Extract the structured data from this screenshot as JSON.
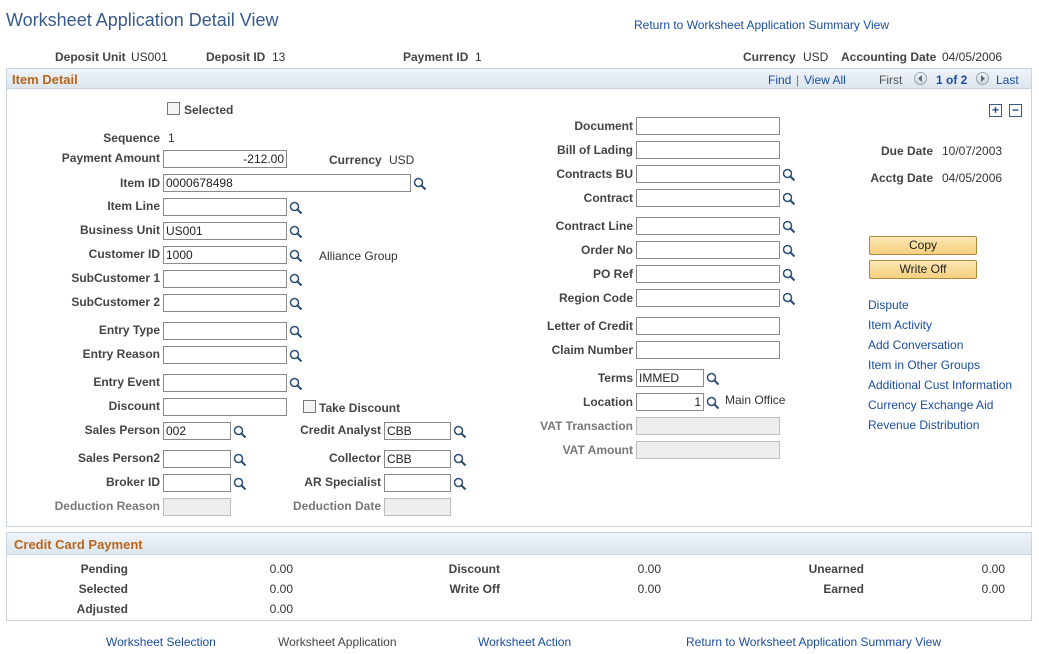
{
  "page": {
    "title": "Worksheet Application Detail View",
    "return_link": "Return to Worksheet Application Summary View"
  },
  "header": {
    "deposit_unit_label": "Deposit Unit",
    "deposit_unit": "US001",
    "deposit_id_label": "Deposit ID",
    "deposit_id": "13",
    "payment_id_label": "Payment ID",
    "payment_id": "1",
    "currency_label": "Currency",
    "currency": "USD",
    "accounting_date_label": "Accounting Date",
    "accounting_date": "04/05/2006"
  },
  "item_detail": {
    "section_title": "Item Detail",
    "find": "Find",
    "separator": "|",
    "view_all": "View All",
    "first": "First",
    "pager": "1 of 2",
    "last": "Last",
    "plus": "+",
    "minus": "−",
    "selected_label": "Selected",
    "sequence_label": "Sequence",
    "sequence": "1",
    "payment_amount_label": "Payment Amount",
    "payment_amount": "-212.00",
    "currency_label": "Currency",
    "currency": "USD",
    "item_id_label": "Item ID",
    "item_id": "0000678498",
    "item_line_label": "Item Line",
    "item_line": "",
    "business_unit_label": "Business Unit",
    "business_unit": "US001",
    "customer_id_label": "Customer ID",
    "customer_id": "1000",
    "customer_name": "Alliance Group",
    "subcustomer1_label": "SubCustomer 1",
    "subcustomer2_label": "SubCustomer 2",
    "entry_type_label": "Entry Type",
    "entry_reason_label": "Entry Reason",
    "entry_event_label": "Entry Event",
    "discount_label": "Discount",
    "take_discount_label": "Take Discount",
    "sales_person_label": "Sales Person",
    "sales_person": "002",
    "credit_analyst_label": "Credit Analyst",
    "credit_analyst": "CBB",
    "sales_person2_label": "Sales Person2",
    "collector_label": "Collector",
    "collector": "CBB",
    "broker_id_label": "Broker ID",
    "ar_specialist_label": "AR Specialist",
    "deduction_reason_label": "Deduction Reason",
    "deduction_date_label": "Deduction Date",
    "document_label": "Document",
    "bill_of_lading_label": "Bill of Lading",
    "contracts_bu_label": "Contracts BU",
    "contract_label": "Contract",
    "contract_line_label": "Contract Line",
    "order_no_label": "Order No",
    "po_ref_label": "PO Ref",
    "region_code_label": "Region Code",
    "letter_of_credit_label": "Letter of Credit",
    "claim_number_label": "Claim Number",
    "terms_label": "Terms",
    "terms": "IMMED",
    "location_label": "Location",
    "location": "1",
    "location_name": "Main Office",
    "vat_transaction_label": "VAT Transaction",
    "vat_amount_label": "VAT Amount",
    "due_date_label": "Due Date",
    "due_date": "10/07/2003",
    "acctg_date_label": "Acctg Date",
    "acctg_date": "04/05/2006",
    "copy_button": "Copy",
    "write_off_button": "Write Off",
    "links": [
      "Dispute",
      "Item Activity",
      "Add Conversation",
      "Item in Other Groups",
      "Additional Cust Information",
      "Currency Exchange Aid",
      "Revenue Distribution"
    ]
  },
  "credit_card": {
    "section_title": "Credit Card Payment",
    "pending_label": "Pending",
    "pending": "0.00",
    "selected_label": "Selected",
    "selected": "0.00",
    "adjusted_label": "Adjusted",
    "adjusted": "0.00",
    "discount_label": "Discount",
    "discount": "0.00",
    "write_off_label": "Write Off",
    "write_off": "0.00",
    "unearned_label": "Unearned",
    "unearned": "0.00",
    "earned_label": "Earned",
    "earned": "0.00"
  },
  "footer": {
    "worksheet_selection": "Worksheet Selection",
    "worksheet_application": "Worksheet Application",
    "worksheet_action": "Worksheet Action",
    "return_link": "Return to Worksheet Application Summary View"
  },
  "colors": {
    "title": "#3a5a8c",
    "link": "#1a4d9e",
    "section_title": "#b8661c",
    "button": "#f4cf7e"
  },
  "icons": [
    "search-icon",
    "checkbox-icon",
    "prev-arrow-icon",
    "next-arrow-icon",
    "add-row-icon",
    "delete-row-icon"
  ]
}
